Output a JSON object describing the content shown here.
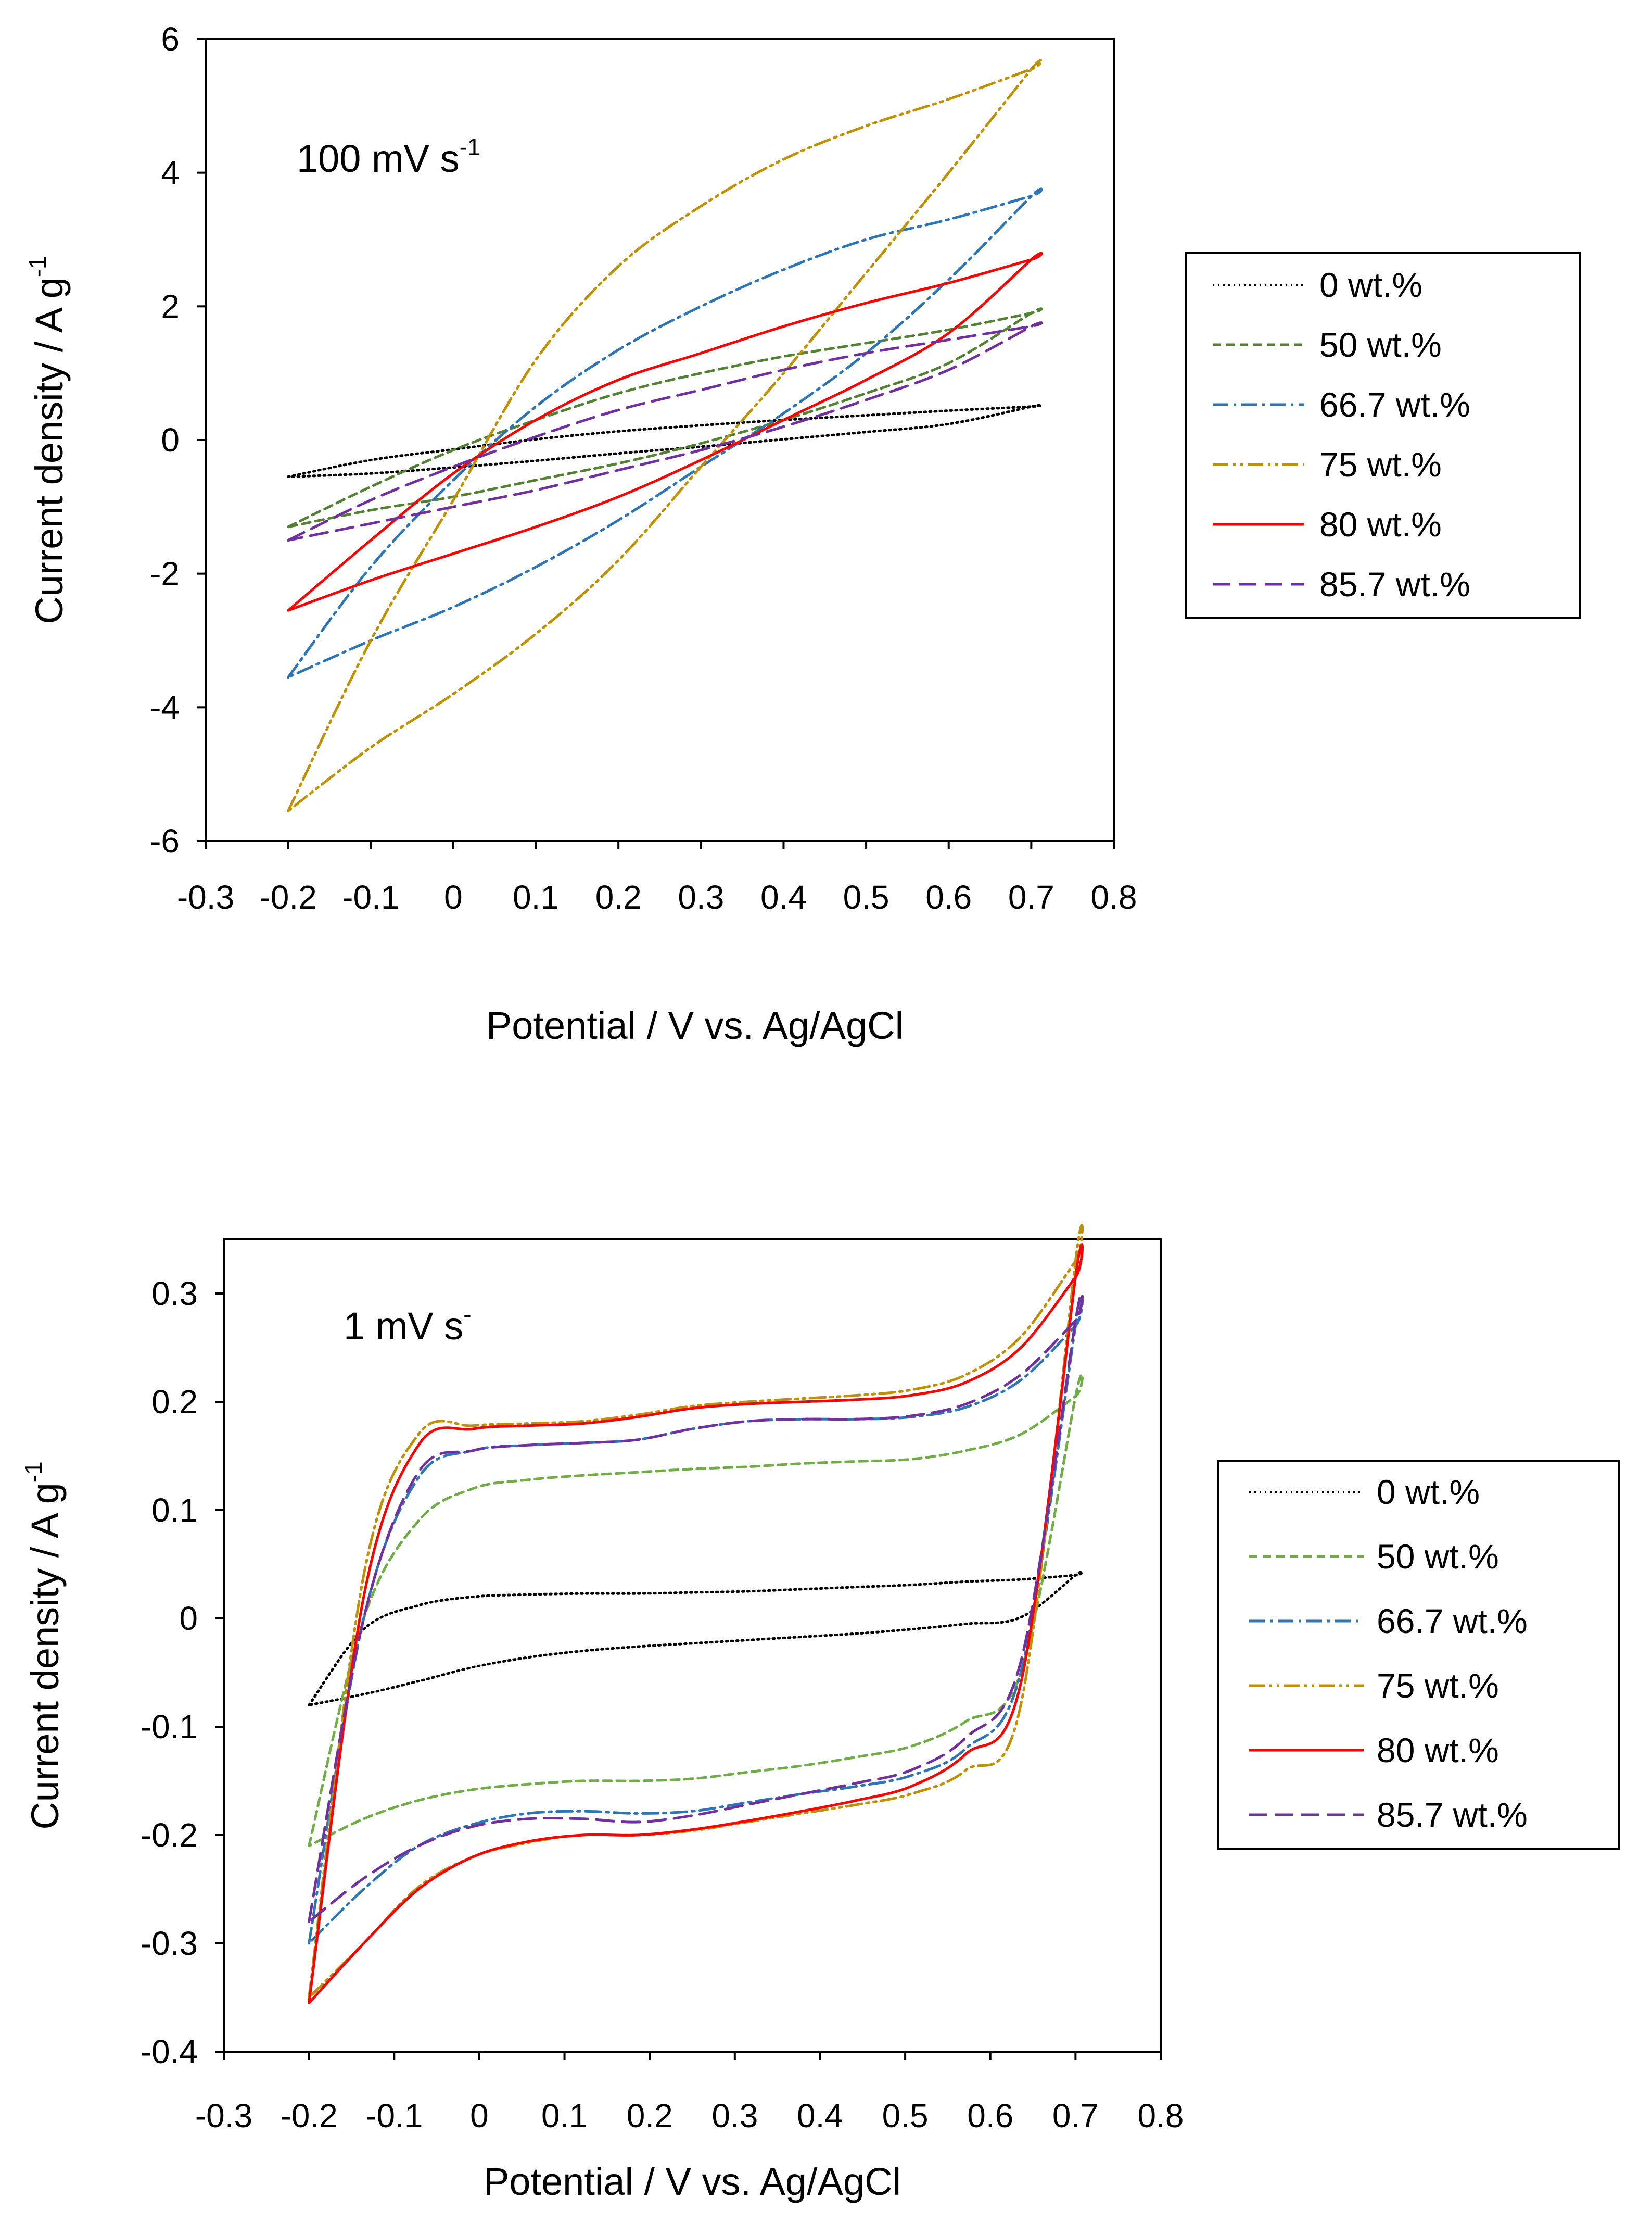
{
  "chart_data": [
    {
      "type": "line",
      "title": "",
      "annotation": "100 mV s",
      "annotation_sup": "-1",
      "xlabel": "Potential / V vs. Ag/AgCl",
      "ylabel": "Current density / A g",
      "ylabel_sup": "-1",
      "xlim": [
        -0.3,
        0.8
      ],
      "ylim": [
        -6,
        6
      ],
      "xticks": [
        "-0.3",
        "-0.2",
        "-0.1",
        "0",
        "0.1",
        "0.2",
        "0.3",
        "0.4",
        "0.5",
        "0.6",
        "0.7",
        "0.8"
      ],
      "yticks": [
        "-6",
        "-4",
        "-2",
        "0",
        "2",
        "4",
        "6"
      ],
      "grid": false,
      "legend_position": "right",
      "series": [
        {
          "name": "0 wt.%",
          "color": "#000000",
          "dash": "dotted",
          "upper": [
            -0.55,
            -0.3,
            -0.14,
            0.01,
            0.13,
            0.22,
            0.3,
            0.37,
            0.44,
            0.5
          ],
          "lower": [
            -0.55,
            -0.5,
            -0.41,
            -0.31,
            -0.2,
            -0.1,
            0.01,
            0.12,
            0.24,
            0.5
          ]
        },
        {
          "name": "50 wt.%",
          "color": "#548235",
          "dash": "dashed-short",
          "upper": [
            -1.3,
            -0.7,
            -0.15,
            0.3,
            0.7,
            1.0,
            1.25,
            1.45,
            1.65,
            1.9
          ],
          "lower": [
            -1.3,
            -1.05,
            -0.85,
            -0.6,
            -0.35,
            -0.05,
            0.3,
            0.7,
            1.15,
            1.9
          ]
        },
        {
          "name": "66.7 wt.%",
          "color": "#2e75b6",
          "dash": "dash-dot",
          "upper": [
            -3.55,
            -1.9,
            -0.6,
            0.5,
            1.35,
            2.0,
            2.55,
            3.0,
            3.3,
            3.65
          ],
          "lower": [
            -3.55,
            -3.0,
            -2.5,
            -1.9,
            -1.2,
            -0.4,
            0.4,
            1.3,
            2.4,
            3.65
          ]
        },
        {
          "name": "75 wt.%",
          "color": "#bf9000",
          "dash": "dash-dot-dot",
          "upper": [
            -5.55,
            -3.0,
            -0.9,
            1.2,
            2.6,
            3.5,
            4.2,
            4.7,
            5.1,
            5.55
          ],
          "lower": [
            -5.55,
            -4.6,
            -3.8,
            -2.9,
            -1.8,
            -0.4,
            1.0,
            2.5,
            4.0,
            5.55
          ]
        },
        {
          "name": "80 wt.%",
          "color": "#ff0000",
          "dash": "solid",
          "upper": [
            -2.55,
            -1.5,
            -0.5,
            0.3,
            0.9,
            1.3,
            1.7,
            2.05,
            2.35,
            2.7
          ],
          "lower": [
            -2.55,
            -2.1,
            -1.7,
            -1.3,
            -0.85,
            -0.3,
            0.3,
            0.9,
            1.6,
            2.7
          ]
        },
        {
          "name": "85.7 wt.%",
          "color": "#7030a0",
          "dash": "dashed",
          "upper": [
            -1.5,
            -0.9,
            -0.4,
            0.05,
            0.45,
            0.75,
            1.05,
            1.3,
            1.5,
            1.7
          ],
          "lower": [
            -1.5,
            -1.25,
            -1.0,
            -0.75,
            -0.45,
            -0.15,
            0.2,
            0.6,
            1.05,
            1.7
          ]
        }
      ]
    },
    {
      "type": "line",
      "title": "",
      "annotation": "1 mV s",
      "annotation_sup": "-",
      "xlabel": "Potential / V vs. Ag/AgCl",
      "ylabel": "Current density / A g",
      "ylabel_sup": "-1",
      "xlim": [
        -0.3,
        0.8
      ],
      "ylim": [
        -0.4,
        0.35
      ],
      "xticks": [
        "-0.3",
        "-0.2",
        "-0.1",
        "0",
        "0.1",
        "0.2",
        "0.3",
        "0.4",
        "0.5",
        "0.6",
        "0.7",
        "0.8"
      ],
      "yticks": [
        "-0.4",
        "-0.3",
        "-0.2",
        "-0.1",
        "0",
        "0.1",
        "0.2",
        "0.3"
      ],
      "grid": false,
      "legend_position": "right",
      "series": [
        {
          "name": "0 wt.%",
          "color": "#000000",
          "dash": "dotted",
          "upper": [
            -0.08,
            -0.01,
            0.012,
            0.02,
            0.022,
            0.023,
            0.023,
            0.024,
            0.025,
            0.027,
            0.029,
            0.031,
            0.034,
            0.036,
            0.04
          ],
          "lower": [
            -0.08,
            -0.07,
            -0.058,
            -0.045,
            -0.036,
            -0.03,
            -0.026,
            -0.023,
            -0.02,
            -0.017,
            -0.014,
            -0.01,
            -0.005,
            0.001,
            0.04
          ]
        },
        {
          "name": "50 wt.%",
          "color": "#70ad47",
          "dash": "dashed-short",
          "upper": [
            -0.21,
            0.0,
            0.09,
            0.12,
            0.128,
            0.132,
            0.135,
            0.138,
            0.14,
            0.143,
            0.145,
            0.147,
            0.155,
            0.17,
            0.205
          ],
          "lower": [
            -0.21,
            -0.185,
            -0.168,
            -0.158,
            -0.153,
            -0.15,
            -0.15,
            -0.148,
            -0.142,
            -0.136,
            -0.128,
            -0.118,
            -0.095,
            -0.05,
            0.205
          ]
        },
        {
          "name": "66.7 wt.%",
          "color": "#2e75b6",
          "dash": "dash-dot",
          "upper": [
            -0.3,
            0.0,
            0.13,
            0.155,
            0.16,
            0.162,
            0.165,
            0.175,
            0.182,
            0.184,
            0.184,
            0.186,
            0.195,
            0.22,
            0.27
          ],
          "lower": [
            -0.3,
            -0.25,
            -0.21,
            -0.19,
            -0.18,
            -0.178,
            -0.18,
            -0.178,
            -0.17,
            -0.162,
            -0.155,
            -0.145,
            -0.12,
            -0.05,
            0.27
          ]
        },
        {
          "name": "75 wt.%",
          "color": "#bf9000",
          "dash": "dash-dot-dot",
          "upper": [
            -0.35,
            0.04,
            0.17,
            0.178,
            0.18,
            0.182,
            0.188,
            0.196,
            0.2,
            0.203,
            0.206,
            0.211,
            0.225,
            0.26,
            0.33
          ],
          "lower": [
            -0.35,
            -0.3,
            -0.248,
            -0.22,
            -0.207,
            -0.2,
            -0.2,
            -0.196,
            -0.188,
            -0.18,
            -0.172,
            -0.162,
            -0.14,
            -0.08,
            0.33
          ]
        },
        {
          "name": "80 wt.%",
          "color": "#ff0000",
          "dash": "solid",
          "upper": [
            -0.355,
            0.02,
            0.16,
            0.175,
            0.178,
            0.18,
            0.186,
            0.194,
            0.198,
            0.2,
            0.202,
            0.206,
            0.218,
            0.25,
            0.315
          ],
          "lower": [
            -0.355,
            -0.3,
            -0.25,
            -0.22,
            -0.206,
            -0.2,
            -0.2,
            -0.195,
            -0.187,
            -0.178,
            -0.168,
            -0.155,
            -0.125,
            -0.06,
            0.315
          ]
        },
        {
          "name": "85.7 wt.%",
          "color": "#7030a0",
          "dash": "dashed",
          "upper": [
            -0.28,
            0.0,
            0.135,
            0.155,
            0.16,
            0.162,
            0.165,
            0.175,
            0.182,
            0.184,
            0.184,
            0.187,
            0.198,
            0.225,
            0.275
          ],
          "lower": [
            -0.28,
            -0.24,
            -0.21,
            -0.192,
            -0.185,
            -0.185,
            -0.188,
            -0.182,
            -0.172,
            -0.162,
            -0.152,
            -0.14,
            -0.11,
            -0.04,
            0.275
          ]
        }
      ]
    }
  ]
}
